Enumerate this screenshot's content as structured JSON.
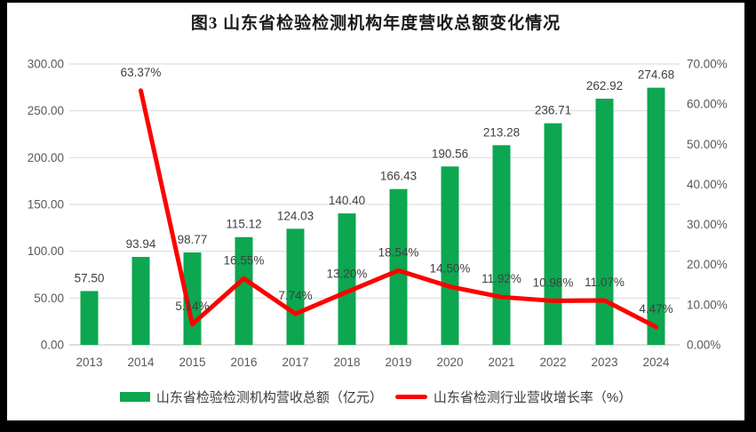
{
  "title": "图3  山东省检验检测机构年度营收总额变化情况",
  "colors": {
    "bar_green": "#0CA750",
    "line_red": "#FF0000",
    "axis_text": "#595959",
    "label_text": "#404040",
    "gridline": "#D9D9D9",
    "frame_border": "#000000",
    "panel_background": "#FFFFFF"
  },
  "chart_data": {
    "type": "bar",
    "subtype": "bar+line combo, dual y-axes",
    "title": "图3  山东省检验检测机构年度营收总额变化情况",
    "categories": [
      "2013",
      "2014",
      "2015",
      "2016",
      "2017",
      "2018",
      "2019",
      "2020",
      "2021",
      "2022",
      "2023",
      "2024"
    ],
    "series": [
      {
        "name": "山东省检验检测机构营收总额（亿元）",
        "type": "bar",
        "axis": "left",
        "color": "#0CA750",
        "values": [
          57.5,
          93.94,
          98.77,
          115.12,
          124.03,
          140.4,
          166.43,
          190.56,
          213.28,
          236.71,
          262.92,
          274.68
        ],
        "labels": [
          "57.50",
          "93.94",
          "98.77",
          "115.12",
          "124.03",
          "140.40",
          "166.43",
          "190.56",
          "213.28",
          "236.71",
          "262.92",
          "274.68"
        ]
      },
      {
        "name": "山东省检测行业营收增长率（%）",
        "type": "line",
        "axis": "right",
        "color": "#FF0000",
        "values": [
          null,
          63.37,
          5.14,
          16.55,
          7.74,
          13.2,
          18.54,
          14.5,
          11.92,
          10.98,
          11.07,
          4.47
        ],
        "labels": [
          "",
          "63.37%",
          "5.14%",
          "16.55%",
          "7.74%",
          "13.20%",
          "18.54%",
          "14.50%",
          "11.92%",
          "10.98%",
          "11.07%",
          "4.47%"
        ]
      }
    ],
    "left_axis": {
      "min": 0,
      "max": 300,
      "step": 50,
      "tick_labels": [
        "0.00",
        "50.00",
        "100.00",
        "150.00",
        "200.00",
        "250.00",
        "300.00"
      ]
    },
    "right_axis": {
      "min": 0,
      "max": 70,
      "step": 10,
      "tick_labels": [
        "0.00%",
        "10.00%",
        "20.00%",
        "30.00%",
        "40.00%",
        "50.00%",
        "60.00%",
        "70.00%"
      ]
    },
    "xlabel": "",
    "ylabel": "",
    "grid": true,
    "legend_position": "bottom"
  },
  "legend": {
    "items": [
      {
        "label": "山东省检验检测机构营收总额（亿元）",
        "marker": "bar-swatch"
      },
      {
        "label": "山东省检测行业营收增长率（%）",
        "marker": "line-swatch"
      }
    ]
  }
}
